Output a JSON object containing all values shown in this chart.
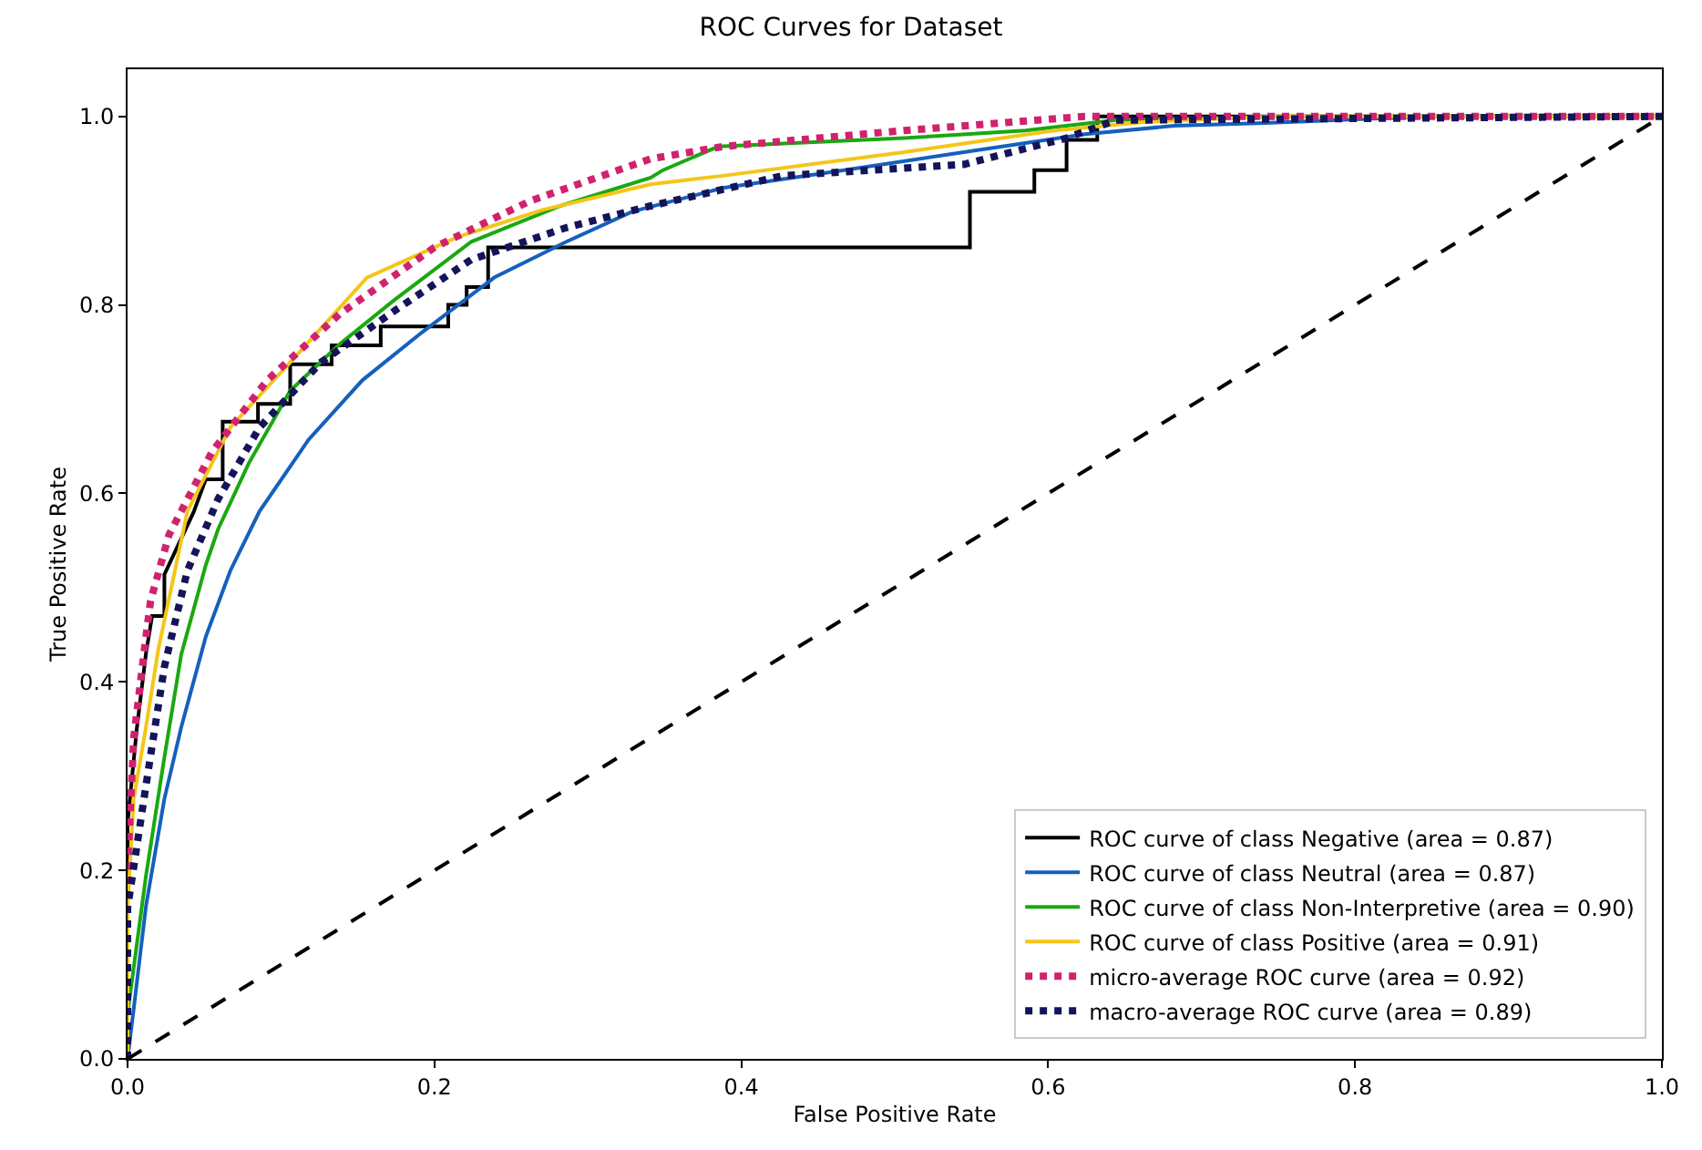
{
  "chart_data": {
    "type": "line",
    "title": "ROC Curves for Dataset",
    "xlabel": "False Positive Rate",
    "ylabel": "True Positive Rate",
    "xlim": [
      0,
      1.0
    ],
    "ylim": [
      0,
      1.05
    ],
    "xticks": [
      {
        "value": 0,
        "label": "0.0"
      },
      {
        "value": 0.2,
        "label": "0.2"
      },
      {
        "value": 0.4,
        "label": "0.4"
      },
      {
        "value": 0.6,
        "label": "0.6"
      },
      {
        "value": 0.8,
        "label": "0.8"
      },
      {
        "value": 1.0,
        "label": "1.0"
      }
    ],
    "yticks": [
      {
        "value": 0,
        "label": "0.0"
      },
      {
        "value": 0.2,
        "label": "0.2"
      },
      {
        "value": 0.4,
        "label": "0.4"
      },
      {
        "value": 0.6,
        "label": "0.6"
      },
      {
        "value": 0.8,
        "label": "0.8"
      },
      {
        "value": 1.0,
        "label": "1.0"
      }
    ],
    "legend": "bottom right",
    "marker": "none",
    "series": [
      {
        "name": "ROC curve of class Negative (area = 0.87)",
        "color": "#000000",
        "line_style": "solid",
        "x": [
          0,
          0,
          0.006,
          0.012,
          0.016,
          0.024,
          0.024,
          0.043,
          0.051,
          0.062,
          0.062,
          0.085,
          0.085,
          0.106,
          0.106,
          0.133,
          0.133,
          0.165,
          0.165,
          0.209,
          0.209,
          0.221,
          0.221,
          0.235,
          0.235,
          0.549,
          0.549,
          0.591,
          0.591,
          0.612,
          0.612,
          0.632,
          0.632,
          1.0
        ],
        "values": [
          0,
          0.25,
          0.35,
          0.43,
          0.47,
          0.47,
          0.514,
          0.58,
          0.615,
          0.615,
          0.676,
          0.676,
          0.695,
          0.695,
          0.737,
          0.737,
          0.757,
          0.757,
          0.777,
          0.777,
          0.8,
          0.8,
          0.819,
          0.819,
          0.861,
          0.861,
          0.92,
          0.92,
          0.943,
          0.943,
          0.975,
          0.975,
          1.0,
          1.0
        ]
      },
      {
        "name": "ROC curve of class Neutral (area = 0.87)",
        "color": "#1560bd",
        "line_style": "solid",
        "x": [
          0,
          0.004,
          0.012,
          0.024,
          0.035,
          0.051,
          0.067,
          0.086,
          0.118,
          0.153,
          0.192,
          0.239,
          0.286,
          0.329,
          0.388,
          0.467,
          0.545,
          0.624,
          0.682,
          0.741,
          0.85,
          1.0
        ],
        "values": [
          0,
          0.053,
          0.162,
          0.276,
          0.352,
          0.448,
          0.518,
          0.581,
          0.657,
          0.72,
          0.771,
          0.829,
          0.867,
          0.899,
          0.924,
          0.943,
          0.962,
          0.981,
          0.99,
          0.993,
          1.0,
          1.0
        ]
      },
      {
        "name": "ROC curve of class Non-Interpretive (area = 0.90)",
        "color": "#1aa811",
        "line_style": "solid",
        "x": [
          0,
          0,
          0.012,
          0.024,
          0.035,
          0.051,
          0.059,
          0.079,
          0.106,
          0.138,
          0.173,
          0.224,
          0.282,
          0.341,
          0.349,
          0.385,
          0.506,
          0.585,
          0.644,
          0.75,
          1.0
        ],
        "values": [
          0,
          0.048,
          0.194,
          0.32,
          0.429,
          0.524,
          0.562,
          0.632,
          0.709,
          0.758,
          0.804,
          0.867,
          0.905,
          0.935,
          0.943,
          0.968,
          0.977,
          0.985,
          0.996,
          1.0,
          1.0
        ]
      },
      {
        "name": "ROC curve of class Positive (area = 0.91)",
        "color": "#f5c518",
        "line_style": "solid",
        "x": [
          0,
          0,
          0.004,
          0.012,
          0.02,
          0.039,
          0.067,
          0.106,
          0.156,
          0.215,
          0.271,
          0.341,
          0.388,
          0.506,
          0.604,
          0.662,
          0.75,
          1.0
        ],
        "values": [
          0,
          0.16,
          0.276,
          0.352,
          0.434,
          0.581,
          0.67,
          0.739,
          0.829,
          0.872,
          0.901,
          0.928,
          0.937,
          0.962,
          0.985,
          0.994,
          1.0,
          1.0
        ]
      },
      {
        "name": "micro-average ROC curve (area = 0.92)",
        "color": "#d0226e",
        "line_style": "dotted",
        "x": [
          0,
          0,
          0.004,
          0.012,
          0.015,
          0.027,
          0.055,
          0.091,
          0.138,
          0.2,
          0.262,
          0.341,
          0.388,
          0.506,
          0.624,
          1.0
        ],
        "values": [
          0,
          0.2,
          0.34,
          0.448,
          0.486,
          0.556,
          0.644,
          0.72,
          0.79,
          0.861,
          0.91,
          0.955,
          0.968,
          0.985,
          1.0,
          1.0
        ]
      },
      {
        "name": "macro-average ROC curve (area = 0.89)",
        "color": "#14145a",
        "line_style": "dotted",
        "x": [
          0,
          0,
          0.012,
          0.024,
          0.039,
          0.059,
          0.086,
          0.126,
          0.176,
          0.224,
          0.286,
          0.341,
          0.427,
          0.545,
          0.612,
          0.644,
          1.0
        ],
        "values": [
          0,
          0.16,
          0.29,
          0.416,
          0.518,
          0.594,
          0.67,
          0.739,
          0.796,
          0.848,
          0.882,
          0.905,
          0.937,
          0.949,
          0.977,
          0.996,
          1.0
        ]
      },
      {
        "color": "#000000",
        "line_style": "dashed",
        "x": [
          0,
          1.0
        ],
        "values": [
          0,
          1.0
        ]
      }
    ]
  }
}
